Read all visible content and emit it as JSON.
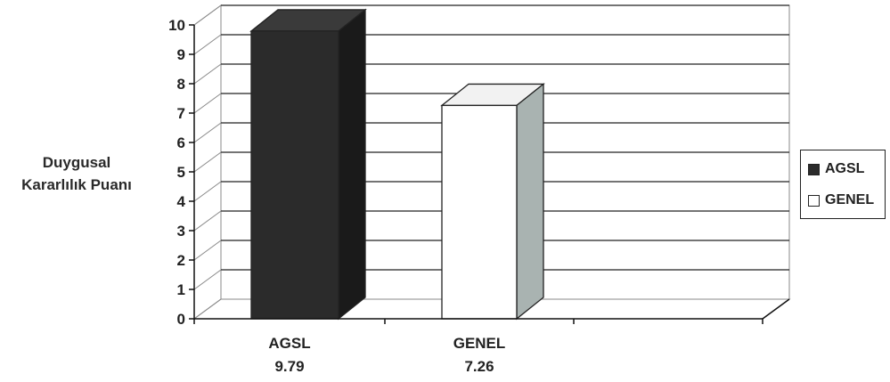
{
  "chart_data": {
    "type": "bar",
    "ylabel": [
      "Duygusal",
      "Kararlılık Puanı"
    ],
    "ylim": [
      0,
      10
    ],
    "yticks": [
      0,
      1,
      2,
      3,
      4,
      5,
      6,
      7,
      8,
      9,
      10
    ],
    "categories": [
      {
        "name": "AGSL",
        "value_label": "9.79"
      },
      {
        "name": "GENEL",
        "value_label": "7.26"
      }
    ],
    "series": [
      {
        "name": "AGSL",
        "value": 9.79,
        "color": "#2b2b2b"
      },
      {
        "name": "GENEL",
        "value": 7.26,
        "color": "#ffffff"
      }
    ],
    "legend": {
      "position": "right",
      "items": [
        {
          "label": "AGSL",
          "color": "#2b2b2b"
        },
        {
          "label": "GENEL",
          "color": "#ffffff"
        }
      ]
    },
    "grid": true,
    "three_d": true,
    "colors": {
      "side_dark": "#1a1a1a",
      "side_white": "#a9b3b1",
      "top_dark": "#3a3a3a",
      "top_white": "#f2f2f2"
    }
  }
}
